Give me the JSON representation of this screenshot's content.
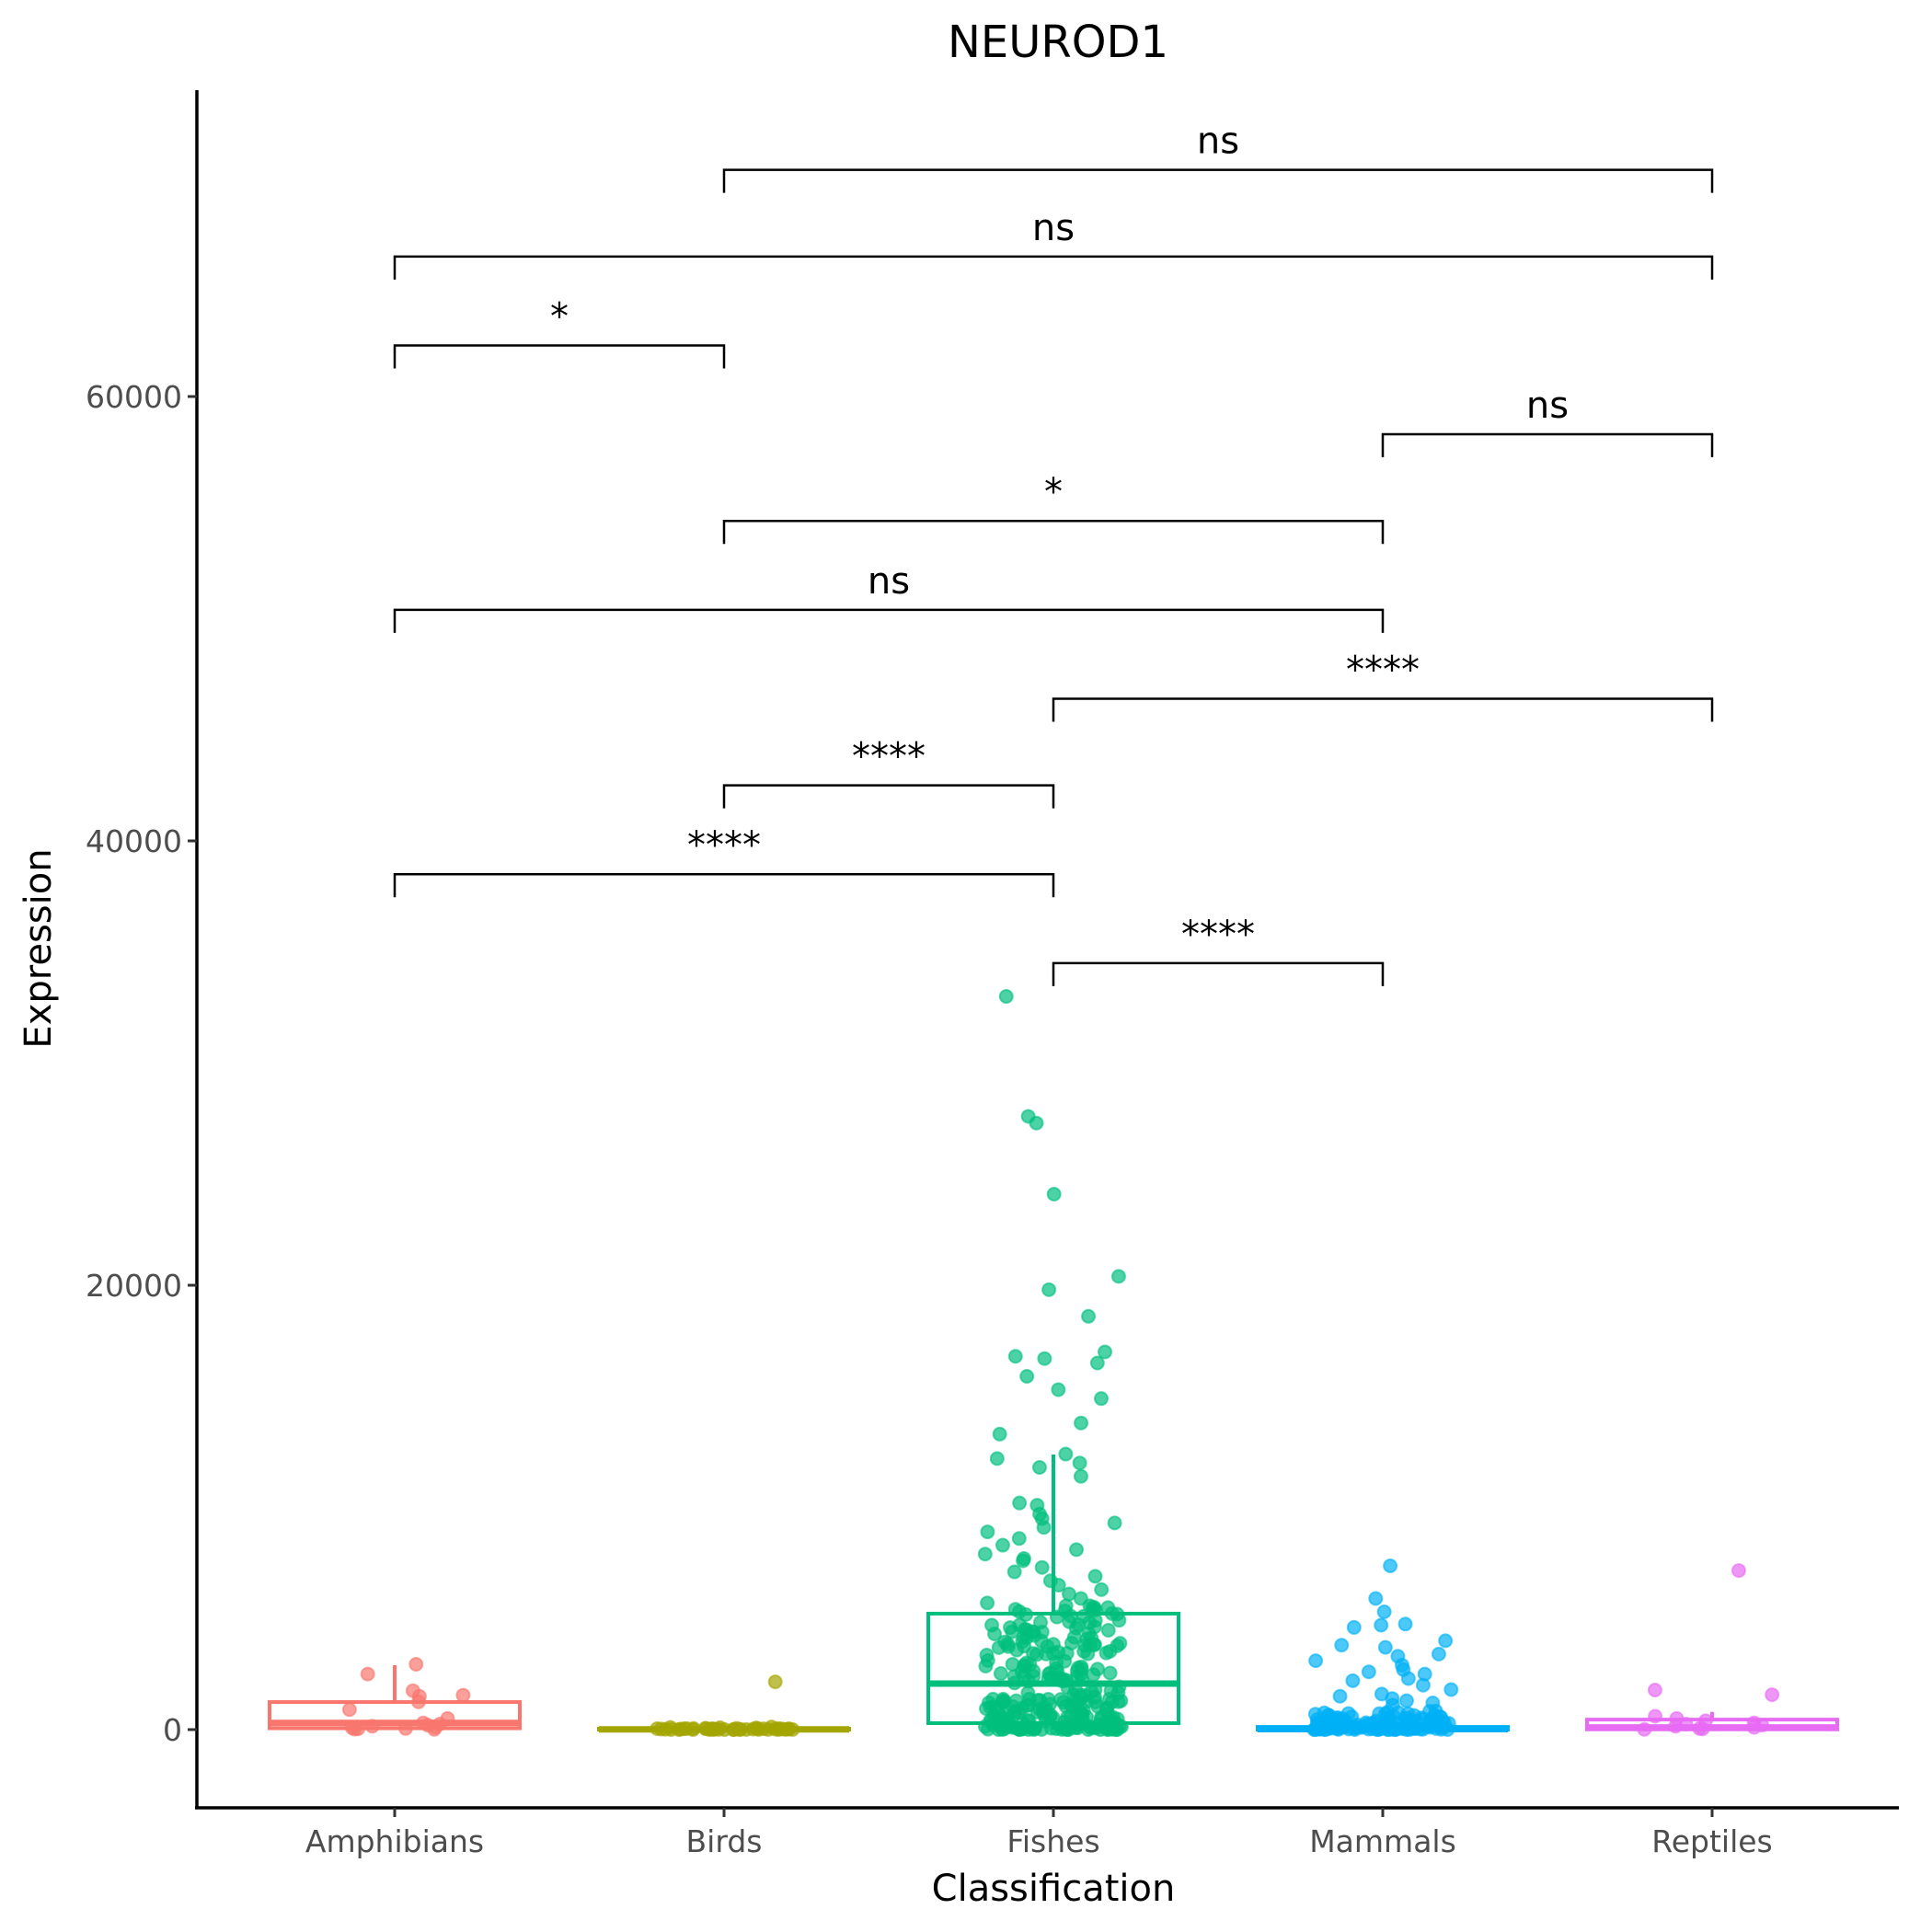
{
  "chart_data": {
    "type": "box",
    "title": "NEUROD1",
    "xlabel": "Classification",
    "ylabel": "Expression",
    "ylim": [
      -3500,
      73800
    ],
    "y_ticks": [
      0,
      20000,
      40000,
      60000
    ],
    "y_tick_labels": [
      "0",
      "20000",
      "40000",
      "60000"
    ],
    "grid": false,
    "legend": "none",
    "categories": [
      "Amphibians",
      "Birds",
      "Fishes",
      "Mammals",
      "Reptiles"
    ],
    "colors": {
      "Amphibians": "#F8766D",
      "Birds": "#A3A500",
      "Fishes": "#00BF7D",
      "Mammals": "#00B0F6",
      "Reptiles": "#E76BF3"
    },
    "series": [
      {
        "name": "Amphibians",
        "box": {
          "lower_whisker": 0,
          "q1": 60,
          "median": 300,
          "q3": 1240,
          "upper_whisker": 2900
        },
        "points": [
          2940,
          2500,
          1750,
          1550,
          1500,
          1250,
          900,
          500,
          300,
          250,
          200,
          150,
          120,
          80,
          50,
          30,
          20,
          10
        ]
      },
      {
        "name": "Birds",
        "box": {
          "lower_whisker": 0,
          "q1": 0,
          "median": 10,
          "q3": 40,
          "upper_whisker": 90
        },
        "points": [
          2150,
          120,
          100,
          90,
          70,
          60,
          50,
          40,
          30,
          20,
          15,
          10,
          5,
          0
        ]
      },
      {
        "name": "Fishes",
        "box": {
          "lower_whisker": 0,
          "q1": 290,
          "median": 2070,
          "q3": 5220,
          "upper_whisker": 12380
        },
        "points": [
          33000,
          27600,
          27300,
          24100,
          20400,
          19800,
          18600,
          16800,
          16700,
          17000,
          16500,
          15900,
          15300,
          14900,
          13800,
          13300,
          12400,
          12200,
          12000,
          11800,
          11400,
          10200,
          10100,
          9700,
          9500,
          9300,
          9100,
          8900,
          8600,
          8300,
          8100,
          7900,
          7700,
          7600,
          7300,
          7100,
          6900,
          6700,
          6500,
          6300,
          6100,
          5900,
          5700
        ]
      },
      {
        "name": "Mammals",
        "box": {
          "lower_whisker": 0,
          "q1": 0,
          "median": 20,
          "q3": 120,
          "upper_whisker": 300
        },
        "points": [
          7370,
          5900,
          5300,
          4750,
          4600,
          4700,
          4000,
          3800,
          3700,
          3400,
          3300,
          3100,
          2900,
          2700,
          2600,
          2500,
          2300,
          2200,
          2000,
          1800,
          1600,
          1500,
          1400,
          1300,
          1200,
          1100
        ]
      },
      {
        "name": "Reptiles",
        "box": {
          "lower_whisker": 0,
          "q1": 10,
          "median": 100,
          "q3": 450,
          "upper_whisker": 800
        },
        "points": [
          7160,
          1780,
          1570,
          600,
          500,
          400,
          300,
          250,
          200,
          150,
          100,
          50,
          30,
          10
        ]
      }
    ],
    "comparisons": [
      {
        "group1": "Fishes",
        "group2": "Mammals",
        "y": 34500,
        "label": "****"
      },
      {
        "group1": "Amphibians",
        "group2": "Fishes",
        "y": 38500,
        "label": "****"
      },
      {
        "group1": "Birds",
        "group2": "Fishes",
        "y": 42500,
        "label": "****"
      },
      {
        "group1": "Fishes",
        "group2": "Reptiles",
        "y": 46400,
        "label": "****"
      },
      {
        "group1": "Amphibians",
        "group2": "Mammals",
        "y": 50400,
        "label": "ns"
      },
      {
        "group1": "Birds",
        "group2": "Mammals",
        "y": 54400,
        "label": "*"
      },
      {
        "group1": "Mammals",
        "group2": "Reptiles",
        "y": 58300,
        "label": "ns"
      },
      {
        "group1": "Amphibians",
        "group2": "Birds",
        "y": 62300,
        "label": "*"
      },
      {
        "group1": "Amphibians",
        "group2": "Reptiles",
        "y": 66300,
        "label": "ns"
      },
      {
        "group1": "Birds",
        "group2": "Reptiles",
        "y": 70200,
        "label": "ns"
      }
    ]
  }
}
